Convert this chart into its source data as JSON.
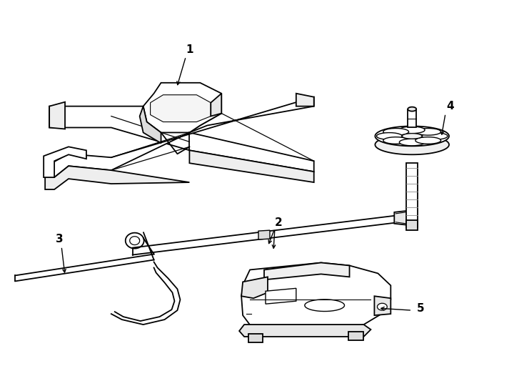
{
  "background_color": "#ffffff",
  "line_color": "#000000",
  "label_color": "#000000",
  "lw": 1.3
}
